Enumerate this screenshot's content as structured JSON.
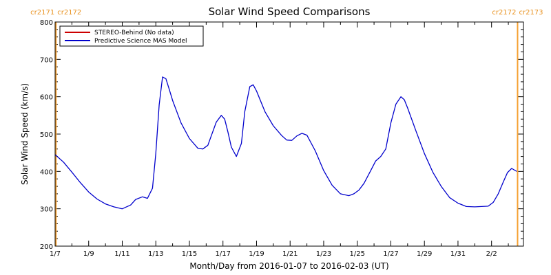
{
  "chart_data": {
    "type": "line",
    "title": "Solar Wind Speed Comparisons",
    "xlabel": "Month/Day from 2016-01-07 to 2016-02-03 (UT)",
    "ylabel": "Solar Wind Speed (km/s)",
    "xlim_days": [
      0,
      27.9
    ],
    "ylim": [
      200,
      800
    ],
    "x_ticks": [
      {
        "day": 0,
        "label": "1/7"
      },
      {
        "day": 2,
        "label": "1/9"
      },
      {
        "day": 4,
        "label": "1/11"
      },
      {
        "day": 6,
        "label": "1/13"
      },
      {
        "day": 8,
        "label": "1/15"
      },
      {
        "day": 10,
        "label": "1/17"
      },
      {
        "day": 12,
        "label": "1/19"
      },
      {
        "day": 14,
        "label": "1/21"
      },
      {
        "day": 16,
        "label": "1/23"
      },
      {
        "day": 18,
        "label": "1/25"
      },
      {
        "day": 20,
        "label": "1/27"
      },
      {
        "day": 22,
        "label": "1/29"
      },
      {
        "day": 24,
        "label": "1/31"
      },
      {
        "day": 26,
        "label": "2/2"
      }
    ],
    "y_ticks": [
      200,
      300,
      400,
      500,
      600,
      700,
      800
    ],
    "carrington_markers": [
      {
        "day": 0.05,
        "left_label": "cr2171",
        "right_label": "cr2172"
      },
      {
        "day": 27.55,
        "left_label": "cr2172",
        "right_label": "cr2173"
      }
    ],
    "legend": [
      {
        "label": "STEREO-Behind (No data)",
        "color": "#cc0000"
      },
      {
        "label": "Predictive Science MAS Model",
        "color": "#0000cc"
      }
    ],
    "series": [
      {
        "name": "Predictive Science MAS Model",
        "color": "#0000cc",
        "x": [
          0,
          0.5,
          1,
          1.5,
          2,
          2.5,
          3,
          3.5,
          4,
          4.5,
          4.8,
          5.2,
          5.5,
          5.8,
          6,
          6.2,
          6.4,
          6.6,
          6.8,
          7,
          7.5,
          8,
          8.5,
          8.8,
          9.1,
          9.3,
          9.6,
          9.9,
          10.1,
          10.3,
          10.5,
          10.8,
          11.1,
          11.3,
          11.6,
          11.8,
          12,
          12.5,
          13,
          13.5,
          13.8,
          14.1,
          14.4,
          14.7,
          15,
          15.5,
          16,
          16.5,
          17,
          17.5,
          17.8,
          18.1,
          18.4,
          18.8,
          19.1,
          19.4,
          19.7,
          20,
          20.3,
          20.6,
          20.8,
          21,
          21.5,
          22,
          22.5,
          23,
          23.5,
          24,
          24.5,
          25,
          25.4,
          25.8,
          26.1,
          26.4,
          26.7,
          26.95,
          27.2,
          27.5
        ],
        "y": [
          445,
          425,
          398,
          370,
          345,
          326,
          313,
          305,
          300,
          310,
          325,
          332,
          328,
          355,
          448,
          578,
          653,
          648,
          620,
          590,
          530,
          488,
          462,
          460,
          470,
          495,
          532,
          550,
          540,
          505,
          465,
          440,
          475,
          560,
          627,
          632,
          615,
          560,
          522,
          496,
          484,
          483,
          495,
          502,
          497,
          455,
          402,
          363,
          340,
          335,
          340,
          350,
          368,
          402,
          428,
          440,
          460,
          530,
          580,
          600,
          592,
          570,
          508,
          448,
          398,
          360,
          330,
          315,
          306,
          305,
          306,
          307,
          317,
          340,
          372,
          397,
          408,
          400
        ]
      }
    ]
  }
}
